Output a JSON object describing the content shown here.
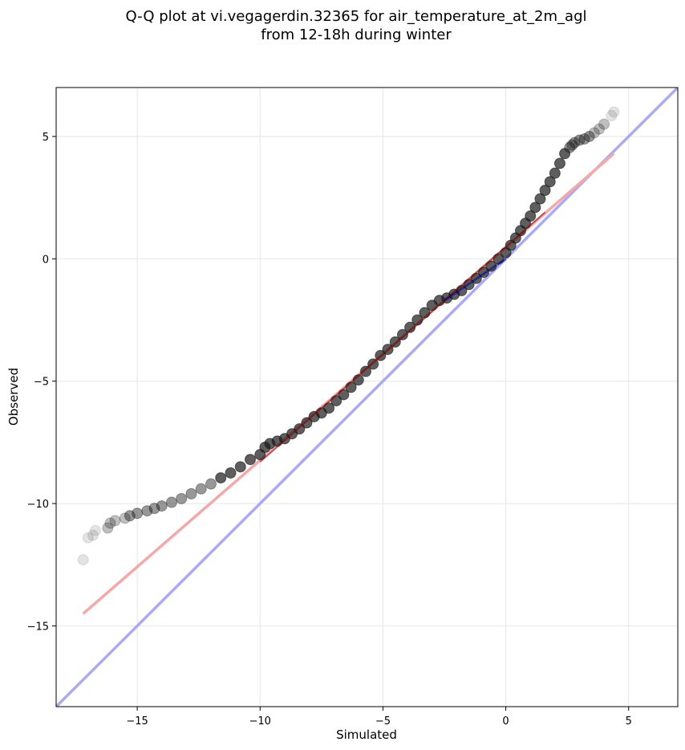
{
  "chart_data": {
    "type": "scatter",
    "title_lines": [
      "Q-Q plot at vi.vegagerdin.32365 for air_temperature_at_2m_agl",
      "from 12-18h during winter"
    ],
    "xlabel": "Simulated",
    "ylabel": "Observed",
    "xlim": [
      -18.3,
      7.0
    ],
    "ylim": [
      -18.3,
      7.0
    ],
    "xticks": [
      -15,
      -10,
      -5,
      0,
      5
    ],
    "yticks": [
      -15,
      -10,
      -5,
      0,
      5
    ],
    "grid": true,
    "identity_line": {
      "color": "#aaaaf5"
    },
    "fit_line": {
      "color": "#f5a8a8",
      "x": [
        -17.2,
        4.4
      ],
      "y": [
        -14.5,
        4.3
      ]
    },
    "points_color": "#1a1a1a",
    "quantiles_x": [
      -17.2,
      -17.0,
      -16.8,
      -16.7,
      -16.2,
      -16.1,
      -15.9,
      -15.5,
      -15.3,
      -15.0,
      -14.6,
      -14.3,
      -14.0,
      -13.6,
      -13.2,
      -12.8,
      -12.4,
      -12.0,
      -11.6,
      -11.2,
      -10.8,
      -10.4,
      -10.0,
      -9.8,
      -9.6,
      -9.3,
      -9.0,
      -8.7,
      -8.4,
      -8.1,
      -7.8,
      -7.5,
      -7.2,
      -6.9,
      -6.6,
      -6.3,
      -6.0,
      -5.7,
      -5.4,
      -5.1,
      -4.8,
      -4.5,
      -4.2,
      -3.9,
      -3.6,
      -3.3,
      -3.0,
      -2.7,
      -2.4,
      -2.1,
      -1.8,
      -1.5,
      -1.2,
      -0.9,
      -0.6,
      -0.3,
      0.0,
      0.2,
      0.4,
      0.6,
      0.8,
      1.0,
      1.2,
      1.4,
      1.6,
      1.8,
      2.0,
      2.2,
      2.4,
      2.6,
      2.7,
      2.8,
      3.0,
      3.2,
      3.4,
      3.6,
      3.8,
      4.0,
      4.3,
      4.4
    ],
    "quantiles_y": [
      -12.3,
      -11.4,
      -11.3,
      -11.1,
      -11.0,
      -10.8,
      -10.7,
      -10.6,
      -10.5,
      -10.4,
      -10.3,
      -10.2,
      -10.1,
      -9.95,
      -9.8,
      -9.6,
      -9.4,
      -9.2,
      -8.95,
      -8.75,
      -8.5,
      -8.2,
      -8.0,
      -7.7,
      -7.55,
      -7.45,
      -7.35,
      -7.15,
      -6.95,
      -6.7,
      -6.45,
      -6.3,
      -6.1,
      -5.8,
      -5.55,
      -5.25,
      -4.95,
      -4.6,
      -4.3,
      -3.95,
      -3.7,
      -3.4,
      -3.1,
      -2.8,
      -2.5,
      -2.2,
      -1.9,
      -1.7,
      -1.6,
      -1.45,
      -1.3,
      -1.05,
      -0.8,
      -0.55,
      -0.3,
      0.0,
      0.25,
      0.55,
      0.85,
      1.15,
      1.45,
      1.75,
      2.1,
      2.45,
      2.8,
      3.15,
      3.5,
      3.9,
      4.3,
      4.55,
      4.65,
      4.75,
      4.85,
      4.9,
      5.0,
      5.15,
      5.3,
      5.5,
      5.85,
      6.0
    ]
  }
}
